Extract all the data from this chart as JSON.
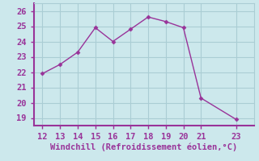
{
  "x": [
    12,
    13,
    14,
    15,
    16,
    17,
    18,
    19,
    20,
    21,
    23
  ],
  "y": [
    21.9,
    22.5,
    23.3,
    24.9,
    24.0,
    24.8,
    25.6,
    25.3,
    24.9,
    20.3,
    18.9
  ],
  "line_color": "#993399",
  "marker": "D",
  "marker_size": 2.5,
  "line_width": 1.0,
  "xlabel": "Windchill (Refroidissement éolien,°C)",
  "xlabel_fontsize": 7.5,
  "xlim": [
    11.5,
    24.0
  ],
  "ylim": [
    18.5,
    26.5
  ],
  "xticks": [
    12,
    13,
    14,
    15,
    16,
    17,
    18,
    19,
    20,
    21,
    23
  ],
  "yticks": [
    19,
    20,
    21,
    22,
    23,
    24,
    25,
    26
  ],
  "background_color": "#cce8ec",
  "grid_color": "#aacdd4",
  "tick_fontsize": 7.5,
  "tick_label_color": "#993399",
  "border_color": "#993399"
}
